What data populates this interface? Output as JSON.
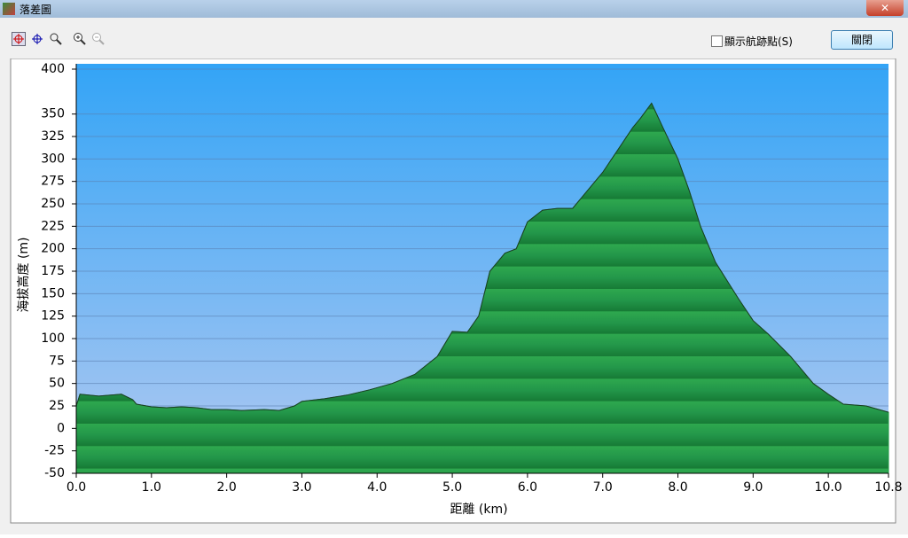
{
  "window": {
    "title": "落差圖"
  },
  "toolbar": {
    "checkbox_label": "顯示航跡點(S)",
    "close_button": "關閉"
  },
  "chart_data": {
    "type": "area",
    "x_label": "距離 (km)",
    "y_label": "海拔高度 (m)",
    "x": [
      0,
      0.05,
      0.3,
      0.6,
      0.75,
      0.8,
      1.0,
      1.2,
      1.4,
      1.6,
      1.8,
      2.0,
      2.2,
      2.5,
      2.7,
      2.9,
      3.0,
      3.3,
      3.6,
      3.9,
      4.2,
      4.5,
      4.8,
      5.0,
      5.2,
      5.35,
      5.5,
      5.7,
      5.85,
      6.0,
      6.2,
      6.4,
      6.6,
      6.8,
      7.0,
      7.2,
      7.4,
      7.5,
      7.65,
      7.8,
      8.0,
      8.15,
      8.3,
      8.5,
      8.8,
      9.0,
      9.2,
      9.5,
      9.8,
      10.0,
      10.2,
      10.5,
      10.8
    ],
    "values": [
      25,
      38,
      36,
      38,
      32,
      27,
      24,
      23,
      24,
      23,
      21,
      21,
      20,
      21,
      20,
      25,
      30,
      33,
      37,
      43,
      50,
      60,
      80,
      108,
      107,
      125,
      175,
      195,
      200,
      230,
      243,
      245,
      245,
      265,
      285,
      310,
      335,
      345,
      362,
      335,
      300,
      265,
      225,
      185,
      145,
      120,
      105,
      80,
      50,
      38,
      27,
      25,
      18
    ],
    "color": "#1f9a45",
    "xlim": [
      0,
      10.8
    ],
    "ylim": [
      -50,
      400
    ],
    "xticks": [
      {
        "value": 0,
        "label": "0.0"
      },
      {
        "value": 1,
        "label": "1.0"
      },
      {
        "value": 2,
        "label": "2.0"
      },
      {
        "value": 3,
        "label": "3.0"
      },
      {
        "value": 4,
        "label": "4.0"
      },
      {
        "value": 5,
        "label": "5.0"
      },
      {
        "value": 6,
        "label": "6.0"
      },
      {
        "value": 7,
        "label": "7.0"
      },
      {
        "value": 8,
        "label": "8.0"
      },
      {
        "value": 9,
        "label": "9.0"
      },
      {
        "value": 10,
        "label": "10.0"
      },
      10.8
    ],
    "yticks": [
      -50,
      -25,
      0,
      25,
      50,
      75,
      100,
      125,
      150,
      175,
      200,
      225,
      250,
      275,
      300,
      325,
      350,
      400
    ],
    "grid": true
  }
}
